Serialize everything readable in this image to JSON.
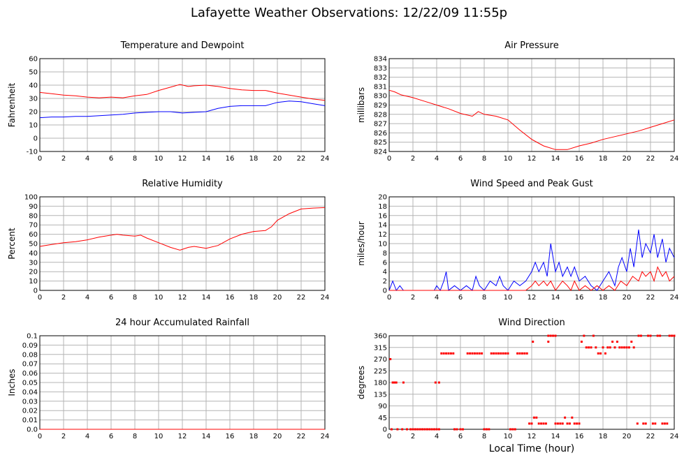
{
  "page": {
    "title": "Lafayette Weather Observations: 12/22/09 11:55p",
    "x_axis_title": "Local Time (hour)"
  },
  "chart_data": [
    {
      "type": "line",
      "title": "Temperature and Dewpoint",
      "ylabel": "Fahrenheit",
      "xlim": [
        0,
        24
      ],
      "ylim": [
        -10,
        60
      ],
      "x_ticks": [
        0,
        2,
        4,
        6,
        8,
        10,
        12,
        14,
        16,
        18,
        20,
        22,
        24
      ],
      "y_ticks": [
        -10,
        0,
        10,
        20,
        30,
        40,
        50,
        60
      ],
      "grid": true,
      "series": [
        {
          "color": "#ff0000",
          "x": [
            0,
            1,
            2,
            3,
            4,
            5,
            6,
            7,
            8,
            9,
            10,
            11,
            11.8,
            12.5,
            13,
            14,
            15,
            16,
            17,
            18,
            19,
            20,
            21,
            22,
            23,
            24
          ],
          "y": [
            34.5,
            33.5,
            32.5,
            32,
            31,
            30.5,
            31,
            30.5,
            32,
            33,
            36,
            38.5,
            40.5,
            39,
            39.5,
            40,
            39,
            37.5,
            36.5,
            36,
            36,
            34,
            32.5,
            31,
            29.5,
            28.5
          ]
        },
        {
          "color": "#0000ff",
          "x": [
            0,
            1,
            2,
            3,
            4,
            5,
            6,
            7,
            8,
            9,
            10,
            11,
            12,
            13,
            14,
            15,
            16,
            17,
            18,
            19,
            20,
            21,
            22,
            23,
            24
          ],
          "y": [
            15.5,
            16,
            16,
            16.5,
            16.5,
            17,
            17.5,
            18,
            19,
            19.5,
            20,
            20,
            19,
            19.5,
            20,
            22.5,
            24,
            24.5,
            24.5,
            24.5,
            27,
            28,
            27.5,
            26,
            24.5
          ]
        }
      ]
    },
    {
      "type": "line",
      "title": "Air Pressure",
      "ylabel": "millibars",
      "xlim": [
        0,
        24
      ],
      "ylim": [
        824,
        834
      ],
      "x_ticks": [
        0,
        2,
        4,
        6,
        8,
        10,
        12,
        14,
        16,
        18,
        20,
        22,
        24
      ],
      "y_ticks": [
        824,
        825,
        826,
        827,
        828,
        829,
        830,
        831,
        832,
        833,
        834
      ],
      "grid": true,
      "series": [
        {
          "color": "#ff0000",
          "x": [
            0,
            0.5,
            1,
            2,
            3,
            4,
            5,
            6,
            7,
            7.5,
            8,
            9,
            10,
            11,
            12,
            13,
            14,
            15,
            16,
            17,
            18,
            19,
            20,
            21,
            22,
            23,
            24
          ],
          "y": [
            830.6,
            830.4,
            830.1,
            829.8,
            829.4,
            829,
            828.6,
            828.1,
            827.8,
            828.3,
            828,
            827.8,
            827.4,
            826.3,
            825.3,
            824.6,
            824.2,
            824.2,
            824.6,
            824.9,
            825.3,
            825.6,
            825.9,
            826.2,
            826.6,
            827,
            827.4
          ]
        }
      ]
    },
    {
      "type": "line",
      "title": "Relative Humidity",
      "ylabel": "Percent",
      "xlim": [
        0,
        24
      ],
      "ylim": [
        0,
        100
      ],
      "x_ticks": [
        0,
        2,
        4,
        6,
        8,
        10,
        12,
        14,
        16,
        18,
        20,
        22,
        24
      ],
      "y_ticks": [
        0,
        10,
        20,
        30,
        40,
        50,
        60,
        70,
        80,
        90,
        100
      ],
      "grid": true,
      "series": [
        {
          "color": "#ff0000",
          "x": [
            0,
            1,
            2,
            3,
            4,
            5,
            6,
            6.5,
            7,
            8,
            8.5,
            9,
            10,
            11,
            11.8,
            12.5,
            13,
            14,
            15,
            16,
            17,
            18,
            19,
            19.5,
            20,
            21,
            22,
            23,
            24
          ],
          "y": [
            47,
            49,
            51,
            52,
            54,
            57,
            59,
            60,
            59,
            58,
            59,
            56,
            51,
            46,
            43,
            46,
            47,
            45,
            48,
            55,
            60,
            63,
            64,
            68,
            75,
            82,
            87,
            88,
            88.5
          ]
        }
      ]
    },
    {
      "type": "line",
      "title": "Wind Speed and Peak Gust",
      "ylabel": "miles/hour",
      "xlim": [
        0,
        24
      ],
      "ylim": [
        0,
        20
      ],
      "x_ticks": [
        0,
        2,
        4,
        6,
        8,
        10,
        12,
        14,
        16,
        18,
        20,
        22,
        24
      ],
      "y_ticks": [
        0,
        2,
        4,
        6,
        8,
        10,
        12,
        14,
        16,
        18,
        20
      ],
      "grid": true,
      "series": [
        {
          "color": "#0000ff",
          "x": [
            0,
            0.3,
            0.6,
            0.9,
            1.2,
            1.5,
            2,
            3,
            3.8,
            4,
            4.3,
            4.6,
            4.8,
            5,
            5.5,
            6,
            6.5,
            7,
            7.3,
            7.6,
            8,
            8.5,
            9,
            9.3,
            9.6,
            10,
            10.5,
            11,
            11.5,
            12,
            12.3,
            12.6,
            13,
            13.3,
            13.6,
            14,
            14.3,
            14.6,
            15,
            15.3,
            15.6,
            16,
            16.5,
            17,
            17.5,
            18,
            18.5,
            19,
            19.3,
            19.6,
            20,
            20.3,
            20.6,
            21,
            21.3,
            21.6,
            22,
            22.3,
            22.6,
            23,
            23.3,
            23.6,
            24
          ],
          "y": [
            0,
            2,
            0,
            1,
            0,
            0,
            0,
            0,
            0,
            1,
            0,
            2,
            4,
            0,
            1,
            0,
            1,
            0,
            3,
            1,
            0,
            2,
            1,
            3,
            1,
            0,
            2,
            1,
            2,
            4,
            6,
            4,
            6,
            3,
            10,
            4,
            6,
            3,
            5,
            3,
            5,
            2,
            3,
            1,
            0,
            2,
            4,
            1,
            5,
            7,
            4,
            9,
            5,
            13,
            7,
            10,
            8,
            12,
            7,
            11,
            6,
            9,
            7
          ]
        },
        {
          "color": "#ff0000",
          "x": [
            0,
            4,
            5,
            6,
            7,
            8,
            9,
            10,
            11,
            11.5,
            12,
            12.3,
            12.6,
            13,
            13.3,
            13.6,
            14,
            14.3,
            14.6,
            15,
            15.3,
            15.6,
            16,
            16.5,
            17,
            17.5,
            18,
            18.5,
            19,
            19.5,
            20,
            20.5,
            21,
            21.3,
            21.6,
            22,
            22.3,
            22.6,
            23,
            23.3,
            23.6,
            24
          ],
          "y": [
            0,
            0,
            0,
            0,
            0,
            0,
            0,
            0,
            0,
            0,
            1,
            2,
            1,
            2,
            1,
            2,
            0,
            1,
            2,
            1,
            0,
            2,
            0,
            1,
            0,
            1,
            0,
            1,
            0,
            2,
            1,
            3,
            2,
            4,
            3,
            4,
            2,
            5,
            3,
            4,
            2,
            3
          ]
        }
      ]
    },
    {
      "type": "line",
      "title": "24 hour Accumulated Rainfall",
      "ylabel": "Inches",
      "xlim": [
        0,
        24
      ],
      "ylim": [
        0,
        0.1
      ],
      "x_ticks": [
        0,
        2,
        4,
        6,
        8,
        10,
        12,
        14,
        16,
        18,
        20,
        22,
        24
      ],
      "y_ticks": [
        "0.0",
        "0.01",
        "0.02",
        "0.03",
        "0.04",
        "0.05",
        "0.06",
        "0.07",
        "0.08",
        "0.09",
        "0.1"
      ],
      "grid": true,
      "series": [
        {
          "color": "#ff0000",
          "x": [
            0,
            24
          ],
          "y": [
            0,
            0
          ]
        }
      ]
    },
    {
      "type": "scatter",
      "title": "Wind Direction",
      "ylabel": "degrees",
      "xlim": [
        0,
        24
      ],
      "ylim": [
        0,
        360
      ],
      "x_ticks": [
        0,
        2,
        4,
        6,
        8,
        10,
        12,
        14,
        16,
        18,
        20,
        22,
        24
      ],
      "y_ticks": [
        0,
        45,
        90,
        135,
        180,
        225,
        270,
        315,
        360
      ],
      "grid": true,
      "series": [
        {
          "color": "#ff0000",
          "points": [
            [
              0.1,
              270
            ],
            [
              0.2,
              0
            ],
            [
              0.3,
              180
            ],
            [
              0.4,
              180
            ],
            [
              0.5,
              180
            ],
            [
              0.6,
              180
            ],
            [
              0.7,
              0
            ],
            [
              1.2,
              180
            ],
            [
              1.1,
              0
            ],
            [
              1.5,
              0
            ],
            [
              1.8,
              0
            ],
            [
              2,
              0
            ],
            [
              2.2,
              0
            ],
            [
              2.4,
              0
            ],
            [
              2.6,
              0
            ],
            [
              2.8,
              0
            ],
            [
              3,
              0
            ],
            [
              3.2,
              0
            ],
            [
              3.4,
              0
            ],
            [
              3.6,
              0
            ],
            [
              3.8,
              0
            ],
            [
              4,
              0
            ],
            [
              4.2,
              0
            ],
            [
              3.9,
              180
            ],
            [
              4.2,
              180
            ],
            [
              4.4,
              292
            ],
            [
              4.6,
              292
            ],
            [
              4.8,
              292
            ],
            [
              5,
              292
            ],
            [
              5.2,
              292
            ],
            [
              5.4,
              292
            ],
            [
              5.5,
              0
            ],
            [
              5.7,
              0
            ],
            [
              6,
              0
            ],
            [
              6.2,
              0
            ],
            [
              6.6,
              292
            ],
            [
              6.8,
              292
            ],
            [
              7,
              292
            ],
            [
              7.2,
              292
            ],
            [
              7.4,
              292
            ],
            [
              7.6,
              292
            ],
            [
              7.8,
              292
            ],
            [
              8,
              0
            ],
            [
              8.2,
              0
            ],
            [
              8.4,
              0
            ],
            [
              8.6,
              292
            ],
            [
              8.8,
              292
            ],
            [
              9,
              292
            ],
            [
              9.2,
              292
            ],
            [
              9.4,
              292
            ],
            [
              9.6,
              292
            ],
            [
              9.8,
              292
            ],
            [
              10,
              292
            ],
            [
              10.2,
              0
            ],
            [
              10.4,
              0
            ],
            [
              10.6,
              0
            ],
            [
              10.8,
              292
            ],
            [
              11,
              292
            ],
            [
              11.2,
              292
            ],
            [
              11.4,
              292
            ],
            [
              11.6,
              292
            ],
            [
              11.8,
              22
            ],
            [
              12,
              22
            ],
            [
              12.1,
              337
            ],
            [
              12.2,
              45
            ],
            [
              12.4,
              45
            ],
            [
              12.6,
              22
            ],
            [
              12.8,
              22
            ],
            [
              13,
              22
            ],
            [
              13.2,
              22
            ],
            [
              13.4,
              360
            ],
            [
              13.6,
              360
            ],
            [
              13.8,
              360
            ],
            [
              14,
              360
            ],
            [
              13.4,
              337
            ],
            [
              14,
              22
            ],
            [
              14.2,
              22
            ],
            [
              14.4,
              22
            ],
            [
              14.6,
              22
            ],
            [
              14.8,
              45
            ],
            [
              15,
              22
            ],
            [
              15.2,
              22
            ],
            [
              15.4,
              45
            ],
            [
              15.6,
              22
            ],
            [
              15.8,
              22
            ],
            [
              16,
              22
            ],
            [
              16.2,
              337
            ],
            [
              16.4,
              360
            ],
            [
              16.6,
              315
            ],
            [
              16.8,
              315
            ],
            [
              17,
              315
            ],
            [
              17.2,
              360
            ],
            [
              17.4,
              315
            ],
            [
              17.6,
              292
            ],
            [
              17.8,
              292
            ],
            [
              18,
              315
            ],
            [
              18.2,
              292
            ],
            [
              18.4,
              315
            ],
            [
              18.6,
              315
            ],
            [
              18.8,
              337
            ],
            [
              19,
              315
            ],
            [
              19.2,
              337
            ],
            [
              19.4,
              315
            ],
            [
              19.6,
              315
            ],
            [
              19.8,
              315
            ],
            [
              20,
              315
            ],
            [
              20.2,
              315
            ],
            [
              20.4,
              337
            ],
            [
              20.6,
              315
            ],
            [
              20.9,
              22
            ],
            [
              21,
              360
            ],
            [
              21.2,
              360
            ],
            [
              21.4,
              22
            ],
            [
              21.6,
              22
            ],
            [
              21.8,
              360
            ],
            [
              22,
              360
            ],
            [
              22.2,
              22
            ],
            [
              22.4,
              22
            ],
            [
              22.6,
              360
            ],
            [
              22.8,
              360
            ],
            [
              23,
              22
            ],
            [
              23.2,
              22
            ],
            [
              23.4,
              22
            ],
            [
              23.6,
              360
            ],
            [
              23.8,
              360
            ],
            [
              24,
              360
            ]
          ]
        }
      ]
    }
  ]
}
